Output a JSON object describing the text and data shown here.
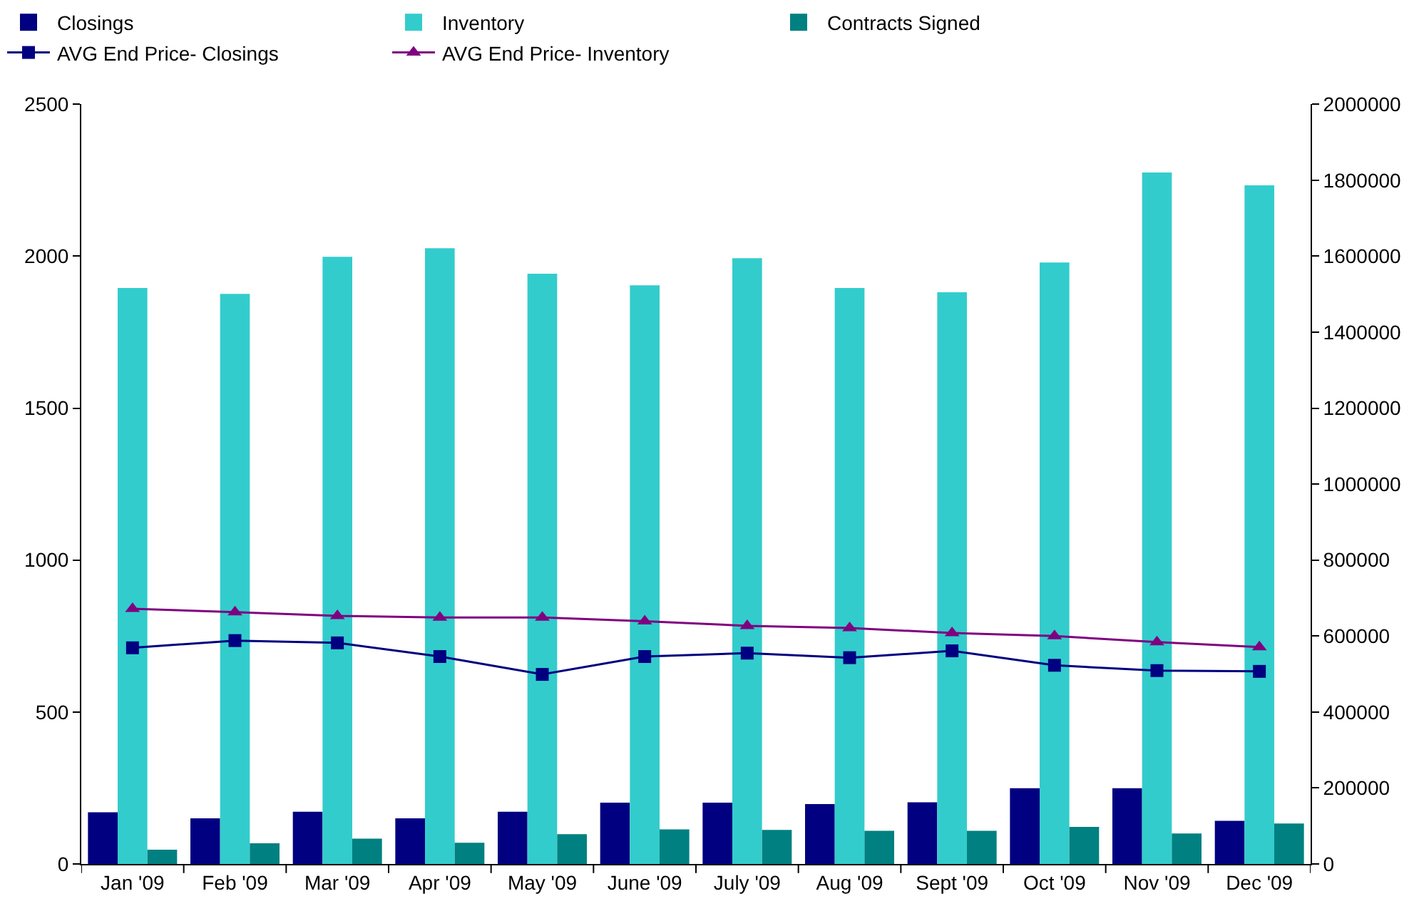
{
  "chart_data": {
    "type": "bar",
    "categories": [
      "Jan '09",
      "Feb '09",
      "Mar '09",
      "Apr '09",
      "May '09",
      "June '09",
      "July '09",
      "Aug '09",
      "Sept '09",
      "Oct '09",
      "Nov '09",
      "Dec '09"
    ],
    "series": [
      {
        "name": "Closings",
        "color": "#000080",
        "values": [
          170,
          150,
          172,
          150,
          172,
          202,
          202,
          197,
          203,
          249,
          249,
          142
        ]
      },
      {
        "name": "Inventory",
        "color": "#33cccc",
        "values": [
          1895,
          1876,
          1998,
          2026,
          1942,
          1904,
          1993,
          1895,
          1881,
          1979,
          2275,
          2233
        ]
      },
      {
        "name": "Contracts Signed",
        "color": "#008080",
        "values": [
          47,
          68,
          83,
          70,
          98,
          114,
          112,
          109,
          109,
          122,
          100,
          133
        ]
      },
      {
        "name": "AVG End Price- Closings",
        "type": "line",
        "axis": "y2",
        "marker": "square",
        "color": "#000080",
        "values": [
          569000,
          588000,
          582000,
          546000,
          499000,
          546000,
          555000,
          543000,
          561000,
          523000,
          509000,
          507000
        ]
      },
      {
        "name": "AVG End Price- Inventory",
        "type": "line",
        "axis": "y2",
        "marker": "triangle",
        "color": "#800080",
        "values": [
          672000,
          663000,
          653000,
          649000,
          649000,
          639000,
          627000,
          621000,
          608000,
          600000,
          584000,
          571000
        ]
      }
    ],
    "ylim": [
      0,
      2500
    ],
    "yticks": [
      0,
      500,
      1000,
      1500,
      2000,
      2500
    ],
    "y2lim": [
      0,
      2000000
    ],
    "y2ticks": [
      0,
      200000,
      400000,
      600000,
      800000,
      1000000,
      1200000,
      1400000,
      1600000,
      1800000,
      2000000
    ],
    "legend": "top"
  }
}
